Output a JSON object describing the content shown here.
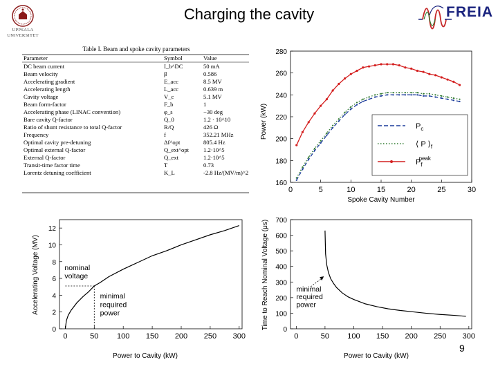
{
  "slide": {
    "title": "Charging the cavity",
    "page_number": "9",
    "logos": {
      "left_text_1": "UPPSALA",
      "left_text_2": "UNIVERSITET",
      "right_text": "FREIA"
    }
  },
  "table": {
    "title": "Table I. Beam and spoke cavity parameters",
    "headers": [
      "Parameter",
      "Symbol",
      "Value"
    ],
    "rows": [
      [
        "DC beam current",
        "I_b^DC",
        "50 mA"
      ],
      [
        "Beam velocity",
        "β",
        "0.586"
      ],
      [
        "Accelerating gradient",
        "E_acc",
        "8.5 MV"
      ],
      [
        "Accelerating length",
        "L_acc",
        "0.639 m"
      ],
      [
        "Cavity voltage",
        "V_c",
        "5.1 MV"
      ],
      [
        "Beam form-factor",
        "F_b",
        "1"
      ],
      [
        "Accelerating phase (LINAC convention)",
        "φ_s",
        "−30 deg"
      ],
      [
        "Bare cavity Q-factor",
        "Q_0",
        "1.2 · 10^10"
      ],
      [
        "Ratio of shunt resistance to total Q-factor",
        "R/Q",
        "426 Ω"
      ],
      [
        "Frequency",
        "f",
        "352.21 MHz"
      ],
      [
        "Optimal cavity pre-detuning",
        "Δf^opt",
        "805.4 Hz"
      ],
      [
        "Optimal external Q-factor",
        "Q_ext^opt",
        "1.2·10^5"
      ],
      [
        "External Q-factor",
        "Q_ext",
        "1.2·10^5"
      ],
      [
        "Transit-time factor time",
        "T",
        "0.73"
      ],
      [
        "Lorentz detuning coefficient",
        "K_L",
        "-2.8 Hz/(MV/m)^2"
      ]
    ]
  },
  "chart_data": [
    {
      "type": "line",
      "title": "",
      "xlabel": "Spoke Cavity Number",
      "ylabel": "Power (kW)",
      "xlim": [
        0,
        30
      ],
      "ylim": [
        160,
        280
      ],
      "xticks": [
        "0",
        "5",
        "10",
        "15",
        "20",
        "25",
        "30"
      ],
      "yticks": [
        "160",
        "180",
        "200",
        "220",
        "240",
        "260",
        "280"
      ],
      "legend_position": "bottom-right",
      "x": [
        1,
        2,
        3,
        4,
        5,
        6,
        7,
        8,
        9,
        10,
        11,
        12,
        13,
        14,
        15,
        16,
        17,
        18,
        19,
        20,
        21,
        22,
        23,
        24,
        25,
        26,
        27,
        28
      ],
      "series": [
        {
          "name": "P_c",
          "legend": "P",
          "sub": "c",
          "sup": "",
          "color": "#1a3a9a",
          "style": "dashed",
          "values": [
            162,
            172,
            181,
            189,
            196,
            203,
            210,
            216,
            222,
            227,
            231,
            234,
            236,
            238,
            239,
            240,
            240,
            240,
            240,
            240,
            240,
            239,
            239,
            238,
            237,
            236,
            235,
            234
          ]
        },
        {
          "name": "<P_f>",
          "legend": "⟨ P ⟩",
          "sub": "f",
          "sup": "",
          "color": "#2f7a2f",
          "style": "dotted",
          "values": [
            164,
            174,
            183,
            191,
            198,
            205,
            212,
            218,
            224,
            229,
            233,
            236,
            238,
            240,
            241,
            242,
            242,
            242,
            242,
            242,
            242,
            241,
            241,
            240,
            239,
            238,
            237,
            236
          ]
        },
        {
          "name": "P_f^peak",
          "legend": "P",
          "sub": "f",
          "sup": "peak",
          "color": "#d42020",
          "style": "solid-marker",
          "values": [
            194,
            206,
            215,
            223,
            230,
            236,
            244,
            250,
            255,
            259,
            262,
            265,
            266,
            267,
            268,
            268,
            268,
            267,
            265,
            264,
            262,
            261,
            259,
            258,
            256,
            254,
            252,
            249
          ]
        }
      ]
    },
    {
      "type": "line",
      "title": "",
      "xlabel": "Power to Cavity (kW)",
      "ylabel": "Accelerating Voltage (MV)",
      "xlim": [
        -10,
        305
      ],
      "ylim": [
        0,
        13
      ],
      "xticks": [
        "0",
        "50",
        "100",
        "150",
        "200",
        "250",
        "300"
      ],
      "yticks": [
        "0",
        "2",
        "4",
        "6",
        "8",
        "10",
        "12"
      ],
      "annotations": {
        "nominal_1": "nominal",
        "nominal_2": "voltage",
        "min_1": "minimal",
        "min_2": "required",
        "min_3": "power"
      },
      "annotation_point": {
        "x": 50,
        "y": 5.1
      },
      "series": [
        {
          "name": "Accelerating voltage",
          "color": "#000000",
          "x": [
            0,
            2,
            5,
            10,
            20,
            30,
            40,
            50,
            60,
            75,
            100,
            125,
            150,
            175,
            200,
            225,
            250,
            275,
            300
          ],
          "values": [
            0,
            1.0,
            1.6,
            2.2,
            3.1,
            3.8,
            4.4,
            5.1,
            5.5,
            6.2,
            7.1,
            7.9,
            8.7,
            9.3,
            10.0,
            10.6,
            11.2,
            11.7,
            12.3
          ]
        }
      ]
    },
    {
      "type": "line",
      "title": "",
      "xlabel": "Power to Cavity (kW)",
      "ylabel": "Time to Reach Nominal Voltage (μs)",
      "xlim": [
        -10,
        305
      ],
      "ylim": [
        0,
        700
      ],
      "xticks": [
        "0",
        "50",
        "100",
        "150",
        "200",
        "250",
        "300"
      ],
      "yticks": [
        "0",
        "100",
        "200",
        "300",
        "400",
        "500",
        "600",
        "700"
      ],
      "annotations": {
        "min_1": "minimal",
        "min_2": "required",
        "min_3": "power"
      },
      "series": [
        {
          "name": "Time to nominal voltage",
          "color": "#000000",
          "x": [
            50,
            51,
            53,
            56,
            60,
            65,
            70,
            80,
            90,
            100,
            120,
            140,
            160,
            180,
            200,
            225,
            250,
            275,
            295
          ],
          "values": [
            630,
            480,
            410,
            360,
            320,
            290,
            265,
            230,
            205,
            188,
            160,
            142,
            128,
            118,
            110,
            100,
            92,
            86,
            80
          ]
        }
      ]
    }
  ]
}
